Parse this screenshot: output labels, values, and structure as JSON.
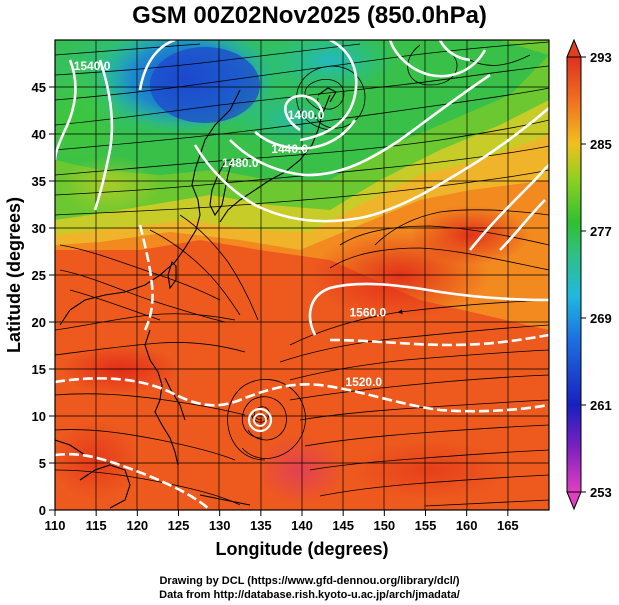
{
  "title": "GSM 00Z02Nov2025 (850.0hPa)",
  "x_axis": {
    "label": "Longitude (degrees)",
    "range": [
      110,
      170
    ],
    "ticks": [
      "110",
      "115",
      "120",
      "125",
      "130",
      "135",
      "140",
      "145",
      "150",
      "155",
      "160",
      "165"
    ],
    "tick_values": [
      110,
      115,
      120,
      125,
      130,
      135,
      140,
      145,
      150,
      155,
      160,
      165
    ]
  },
  "y_axis": {
    "label": "Latitude  (degrees)",
    "range": [
      0,
      50
    ],
    "ticks": [
      "0",
      "5",
      "10",
      "15",
      "20",
      "25",
      "30",
      "35",
      "40",
      "45"
    ],
    "tick_values": [
      0,
      5,
      10,
      15,
      20,
      25,
      30,
      35,
      40,
      45
    ]
  },
  "colorbar": {
    "ticks": [
      "253",
      "261",
      "269",
      "277",
      "285",
      "293"
    ],
    "values": [
      253,
      261,
      269,
      277,
      285,
      293
    ],
    "colors": [
      "#e040c0",
      "#2020c0",
      "#20b0e0",
      "#30c030",
      "#f0b020",
      "#e04020"
    ]
  },
  "contour_labels": [
    {
      "text": "1540.0",
      "lon": 114.5,
      "lat": 46.8
    },
    {
      "text": "1400.0",
      "lon": 140.5,
      "lat": 41.6
    },
    {
      "text": "1440.0",
      "lon": 138.5,
      "lat": 38.0
    },
    {
      "text": "1480.0",
      "lon": 132.5,
      "lat": 36.5
    },
    {
      "text": "1560.0",
      "lon": 148.0,
      "lat": 20.6
    },
    {
      "text": "1520.0",
      "lon": 147.5,
      "lat": 13.2
    }
  ],
  "credits": {
    "line1": "Drawing by DCL (https://www.gfd-dennou.org/library/dcl/)",
    "line2": "Data from http://database.rish.kyoto-u.ac.jp/arch/jmadata/"
  }
}
